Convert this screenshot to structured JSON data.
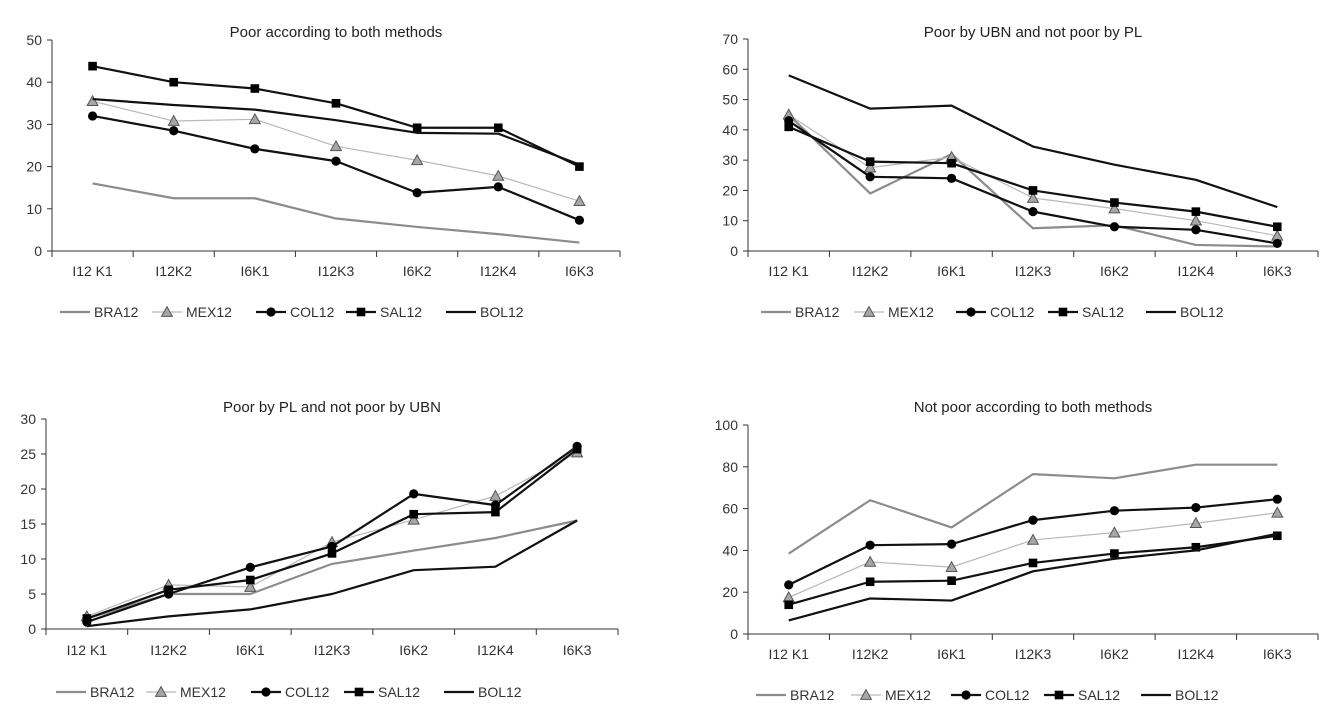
{
  "series_styles": [
    {
      "name": "BRA12",
      "color": "#8c8c8c",
      "width": 2.2,
      "marker": "none"
    },
    {
      "name": "MEX12",
      "color": "#b8b8b8",
      "width": 1.2,
      "marker": "triangle",
      "marker_fill": "#a6a6a6",
      "marker_stroke": "#555555"
    },
    {
      "name": "COL12",
      "color": "#111111",
      "width": 2.2,
      "marker": "circle",
      "marker_fill": "#000000"
    },
    {
      "name": "SAL12",
      "color": "#111111",
      "width": 2.2,
      "marker": "square",
      "marker_fill": "#000000"
    },
    {
      "name": "BOL12",
      "color": "#111111",
      "width": 2.2,
      "marker": "none"
    }
  ],
  "chart_data": [
    {
      "type": "line",
      "title": "Poor according to both methods",
      "categories": [
        "I12 K1",
        "I12K2",
        "I6K1",
        "I12K3",
        "I6K2",
        "I12K4",
        "I6K3"
      ],
      "ylim": [
        0,
        50
      ],
      "yticks": [
        0,
        10,
        20,
        30,
        40,
        50
      ],
      "legend_position": "bottom",
      "series": [
        {
          "name": "BRA12",
          "values": [
            16,
            12.5,
            12.5,
            7.7,
            5.7,
            4,
            2
          ]
        },
        {
          "name": "MEX12",
          "values": [
            35.5,
            30.8,
            31.2,
            24.8,
            21.5,
            17.8,
            11.8
          ]
        },
        {
          "name": "COL12",
          "values": [
            32,
            28.5,
            24.2,
            21.3,
            13.8,
            15.2,
            7.3
          ]
        },
        {
          "name": "SAL12",
          "values": [
            43.8,
            40,
            38.5,
            35,
            29.2,
            29.2,
            20
          ]
        },
        {
          "name": "BOL12",
          "values": [
            36,
            34.6,
            33.5,
            31,
            28,
            27.8,
            20.5
          ]
        }
      ]
    },
    {
      "type": "line",
      "title": "Poor by UBN and not poor by PL",
      "categories": [
        "I12 K1",
        "I12K2",
        "I6K1",
        "I12K3",
        "I6K2",
        "I12K4",
        "I6K3"
      ],
      "ylim": [
        0,
        70
      ],
      "yticks": [
        0,
        10,
        20,
        30,
        40,
        50,
        60,
        70
      ],
      "legend_position": "bottom",
      "series": [
        {
          "name": "BRA12",
          "values": [
            45,
            19,
            32,
            7.5,
            8.5,
            2,
            1.5
          ]
        },
        {
          "name": "MEX12",
          "values": [
            45,
            27.5,
            31,
            17.5,
            14,
            10,
            5
          ]
        },
        {
          "name": "COL12",
          "values": [
            43,
            24.5,
            24,
            13,
            8,
            7,
            2.5
          ]
        },
        {
          "name": "SAL12",
          "values": [
            41,
            29.5,
            29,
            20,
            16,
            13,
            8
          ]
        },
        {
          "name": "BOL12",
          "values": [
            58,
            47,
            48,
            34.5,
            28.5,
            23.5,
            14.5
          ]
        }
      ]
    },
    {
      "type": "line",
      "title": "Poor by PL and not poor by UBN",
      "categories": [
        "I12 K1",
        "I12K2",
        "I6K1",
        "I12K3",
        "I6K2",
        "I12K4",
        "I6K3"
      ],
      "ylim": [
        0,
        30
      ],
      "yticks": [
        0,
        5,
        10,
        15,
        20,
        25,
        30
      ],
      "legend_position": "bottom",
      "series": [
        {
          "name": "BRA12",
          "values": [
            1.5,
            5,
            5,
            9.3,
            11.2,
            13,
            15.5
          ]
        },
        {
          "name": "MEX12",
          "values": [
            1.8,
            6.3,
            6,
            12.4,
            15.6,
            19,
            25.2
          ]
        },
        {
          "name": "COL12",
          "values": [
            1,
            5,
            8.8,
            11.8,
            19.3,
            17.7,
            26.1
          ]
        },
        {
          "name": "SAL12",
          "values": [
            1.5,
            5.6,
            7,
            10.8,
            16.4,
            16.7,
            25.7
          ]
        },
        {
          "name": "BOL12",
          "values": [
            0.4,
            1.8,
            2.8,
            5,
            8.4,
            8.9,
            15.5
          ]
        }
      ]
    },
    {
      "type": "line",
      "title": "Not poor according to both methods",
      "categories": [
        "I12 K1",
        "I12K2",
        "I6K1",
        "I12K3",
        "I6K2",
        "I12K4",
        "I6K3"
      ],
      "ylim": [
        0,
        100
      ],
      "yticks": [
        0,
        20,
        40,
        60,
        80,
        100
      ],
      "legend_position": "bottom",
      "series": [
        {
          "name": "BRA12",
          "values": [
            38.5,
            64,
            51,
            76.5,
            74.5,
            81,
            81
          ]
        },
        {
          "name": "MEX12",
          "values": [
            17.5,
            34.5,
            32,
            45,
            48.5,
            53,
            58
          ]
        },
        {
          "name": "COL12",
          "values": [
            23.5,
            42.5,
            43,
            54.5,
            59,
            60.5,
            64.5
          ]
        },
        {
          "name": "SAL12",
          "values": [
            14,
            25,
            25.5,
            34,
            38.5,
            41.5,
            47
          ]
        },
        {
          "name": "BOL12",
          "values": [
            6.5,
            17,
            16,
            30,
            36,
            40,
            48
          ]
        }
      ]
    }
  ]
}
